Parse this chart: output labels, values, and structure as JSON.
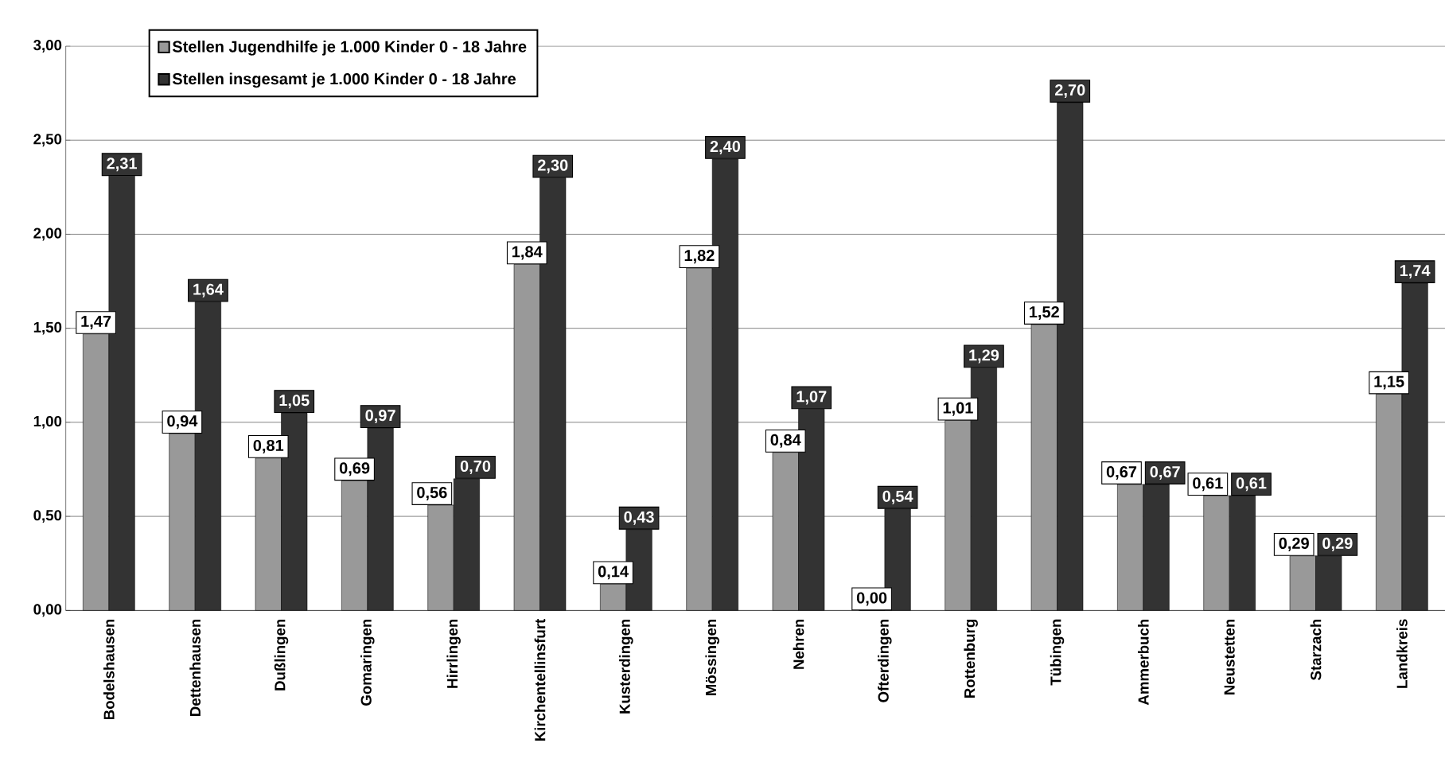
{
  "chart_data": {
    "type": "bar",
    "categories": [
      "Bodelshausen",
      "Dettenhausen",
      "Dußlingen",
      "Gomaringen",
      "Hirrlingen",
      "Kirchentellinsfurt",
      "Kusterdingen",
      "Mössingen",
      "Nehren",
      "Ofterdingen",
      "Rottenburg",
      "Tübingen",
      "Ammerbuch",
      "Neustetten",
      "Starzach",
      "Landkreis"
    ],
    "series": [
      {
        "name": "Stellen Jugendhilfe je 1.000 Kinder   0 - 18 Jahre",
        "color": "#999999",
        "values": [
          1.47,
          0.94,
          0.81,
          0.69,
          0.56,
          1.84,
          0.14,
          1.82,
          0.84,
          0.0,
          1.01,
          1.52,
          0.67,
          0.61,
          0.29,
          1.15
        ],
        "value_labels": [
          "1,47",
          "0,94",
          "0,81",
          "0,69",
          "0,56",
          "1,84",
          "0,14",
          "1,82",
          "0,84",
          "0,00",
          "1,01",
          "1,52",
          "0,67",
          "0,61",
          "0,29",
          "1,15"
        ]
      },
      {
        "name": "Stellen insgesamt je 1.000 Kinder   0 - 18 Jahre",
        "color": "#333333",
        "values": [
          2.31,
          1.64,
          1.05,
          0.97,
          0.7,
          2.3,
          0.43,
          2.4,
          1.07,
          0.54,
          1.29,
          2.7,
          0.67,
          0.61,
          0.29,
          1.74
        ],
        "value_labels": [
          "2,31",
          "1,64",
          "1,05",
          "0,97",
          "0,70",
          "2,30",
          "0,43",
          "2,40",
          "1,07",
          "0,54",
          "1,29",
          "2,70",
          "0,67",
          "0,61",
          "0,29",
          "1,74"
        ]
      }
    ],
    "ylim": [
      0,
      3
    ],
    "yticks": [
      {
        "value": 0,
        "label": "0,00"
      },
      {
        "value": 0.5,
        "label": "0,50"
      },
      {
        "value": 1,
        "label": "1,00"
      },
      {
        "value": 1.5,
        "label": "1,50"
      },
      {
        "value": 2,
        "label": "2,00"
      },
      {
        "value": 2.5,
        "label": "2,50"
      },
      {
        "value": 3,
        "label": "3,00"
      }
    ],
    "grid": "y",
    "legend": "top left"
  }
}
